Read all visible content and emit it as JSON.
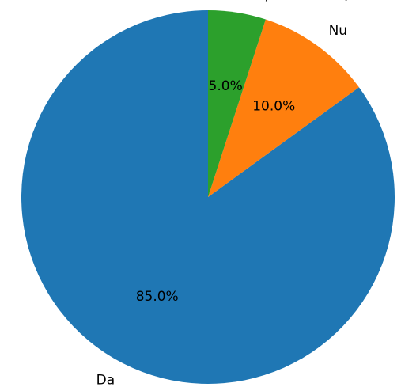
{
  "chart_data": {
    "type": "pie",
    "slices": [
      {
        "label": "Da",
        "value": 85.0,
        "pct_label": "85.0%",
        "color": "#1f77b4"
      },
      {
        "label": "Nu",
        "value": 10.0,
        "pct_label": "10.0%",
        "color": "#ff7f0e"
      },
      {
        "label": "Nu știu / Nu răspund",
        "value": 5.0,
        "pct_label": "5.0%",
        "color": "#2ca02c"
      }
    ],
    "start_angle": "top",
    "direction": "counterclockwise",
    "legend": "none"
  }
}
